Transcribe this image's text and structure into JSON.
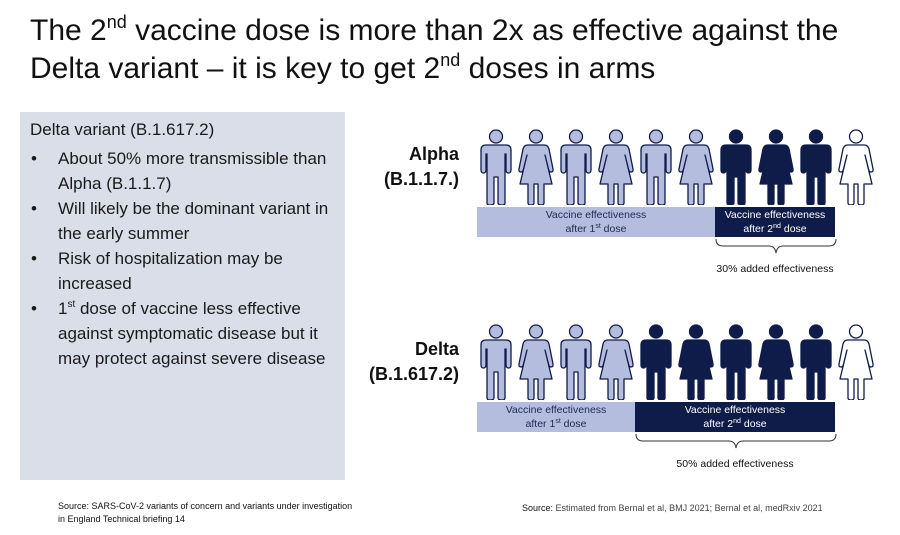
{
  "title": {
    "line1_pre": "The 2",
    "line1_sup": "nd",
    "line1_post": " vaccine dose is more than 2x as effective against the",
    "line2_pre": "Delta variant – it is key to get 2",
    "line2_sup": "nd",
    "line2_post": " doses in arms"
  },
  "panel": {
    "heading": "Delta variant (B.1.617.2)",
    "bullet_char": "•",
    "bullets": {
      "b1": "About 50% more transmissible than Alpha (B.1.1.7)",
      "b2": "Will likely be the dominant variant in the early summer",
      "b3": "Risk of hospitalization may be increased",
      "b4_sup": "st",
      "b4_pre": "1",
      "b4_post": " dose of vaccine less effective against symptomatic disease but it may protect against severe disease"
    }
  },
  "colors": {
    "light_person": "#b4bddd",
    "dark_person": "#0f1c4a",
    "outline_person": "#0f1c4a",
    "panel_bg": "#d9dee8"
  },
  "diagram": {
    "alpha": {
      "name": "Alpha",
      "lineage": "(B.1.1.7.)",
      "people": [
        "male",
        "female",
        "male",
        "female",
        "male",
        "female",
        "male",
        "female",
        "male",
        "female"
      ],
      "first_dose_count": 6,
      "second_dose_count": 3,
      "first_bar": {
        "line1": "Vaccine effectiveness",
        "line2_pre": "after 1",
        "line2_sup": "st",
        "line2_post": " dose"
      },
      "second_bar": {
        "line1": "Vaccine effectiveness",
        "line2_pre": "after 2",
        "line2_sup": "nd",
        "line2_post": " dose"
      },
      "added": "30% added effectiveness"
    },
    "delta": {
      "name": "Delta",
      "lineage": "(B.1.617.2)",
      "people": [
        "male",
        "female",
        "male",
        "female",
        "male",
        "female",
        "male",
        "female",
        "male",
        "female"
      ],
      "first_dose_count": 4,
      "second_dose_count": 5,
      "first_bar": {
        "line1": "Vaccine effectiveness",
        "line2_pre": "after 1",
        "line2_sup": "st",
        "line2_post": " dose"
      },
      "second_bar": {
        "line1": "Vaccine effectiveness",
        "line2_pre": "after 2",
        "line2_sup": "nd",
        "line2_post": " dose"
      },
      "added": "50% added effectiveness"
    }
  },
  "sources": {
    "left": "Source: SARS-CoV-2 variants of concern and variants under investigation in England Technical briefing 14",
    "right_label": "Source:",
    "right_text": " Estimated from Bernal et al, BMJ 2021; Bernal et al, medRxiv 2021"
  }
}
